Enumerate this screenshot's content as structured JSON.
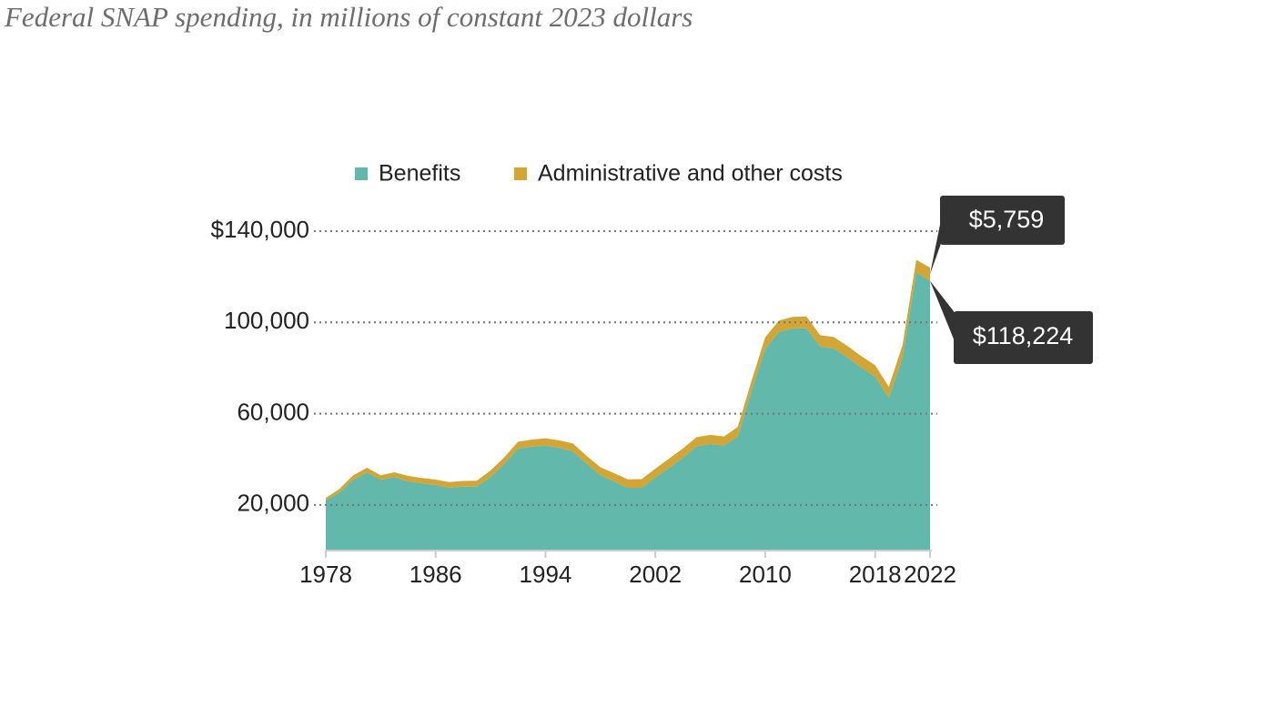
{
  "chart_data": {
    "type": "stacked_area",
    "title": "Federal SNAP spending, in millions of constant 2023 dollars",
    "x": [
      1978,
      1979,
      1980,
      1981,
      1982,
      1983,
      1984,
      1985,
      1986,
      1987,
      1988,
      1989,
      1990,
      1991,
      1992,
      1993,
      1994,
      1995,
      1996,
      1997,
      1998,
      1999,
      2000,
      2001,
      2002,
      2003,
      2004,
      2005,
      2006,
      2007,
      2008,
      2009,
      2010,
      2011,
      2012,
      2013,
      2014,
      2015,
      2016,
      2017,
      2018,
      2019,
      2020,
      2021,
      2022
    ],
    "series": [
      {
        "name": "Benefits",
        "color": "#62b8aa",
        "values": [
          22000,
          25500,
          31000,
          34300,
          31000,
          32300,
          30300,
          29500,
          28700,
          27500,
          28000,
          28000,
          32300,
          38000,
          44700,
          45500,
          46000,
          45000,
          43500,
          38000,
          33000,
          30300,
          27500,
          27500,
          32000,
          36300,
          40700,
          45700,
          46700,
          46000,
          50000,
          70000,
          88500,
          95800,
          97400,
          97400,
          89400,
          88600,
          84600,
          80200,
          76200,
          67000,
          84600,
          122000,
          118224
        ],
        "value_labels": [
          null,
          null,
          null,
          null,
          null,
          null,
          null,
          null,
          null,
          null,
          null,
          null,
          null,
          null,
          null,
          null,
          null,
          null,
          null,
          null,
          null,
          null,
          null,
          null,
          null,
          null,
          null,
          null,
          null,
          null,
          null,
          null,
          null,
          null,
          null,
          null,
          null,
          null,
          null,
          null,
          null,
          null,
          null,
          null,
          "$118,224"
        ]
      },
      {
        "name": "Administrative and other costs",
        "color": "#d3a535",
        "values": [
          1100,
          1500,
          2000,
          2000,
          2000,
          2000,
          2400,
          2300,
          2400,
          2500,
          2500,
          2600,
          2800,
          2900,
          3000,
          3100,
          3200,
          3300,
          3400,
          3500,
          3500,
          3600,
          3700,
          3800,
          3900,
          4000,
          4000,
          4000,
          4000,
          4000,
          4200,
          4300,
          5000,
          5000,
          5000,
          5200,
          5000,
          5000,
          5000,
          5000,
          5000,
          4800,
          5500,
          5500,
          5759
        ],
        "value_labels": [
          null,
          null,
          null,
          null,
          null,
          null,
          null,
          null,
          null,
          null,
          null,
          null,
          null,
          null,
          null,
          null,
          null,
          null,
          null,
          null,
          null,
          null,
          null,
          null,
          null,
          null,
          null,
          null,
          null,
          null,
          null,
          null,
          null,
          null,
          null,
          null,
          null,
          null,
          null,
          null,
          null,
          null,
          null,
          null,
          "$5,759"
        ]
      }
    ],
    "xlim": [
      1978,
      2022
    ],
    "xticks": [
      1978,
      1986,
      1994,
      2002,
      2010,
      2018,
      2022
    ],
    "ylim": [
      0,
      140000
    ],
    "yticks": [
      {
        "value": 20000,
        "label": "20,000"
      },
      {
        "value": 60000,
        "label": "60,000"
      },
      {
        "value": 100000,
        "label": "100,000"
      },
      {
        "value": 140000,
        "label": "$140,000"
      }
    ],
    "grid": true
  }
}
